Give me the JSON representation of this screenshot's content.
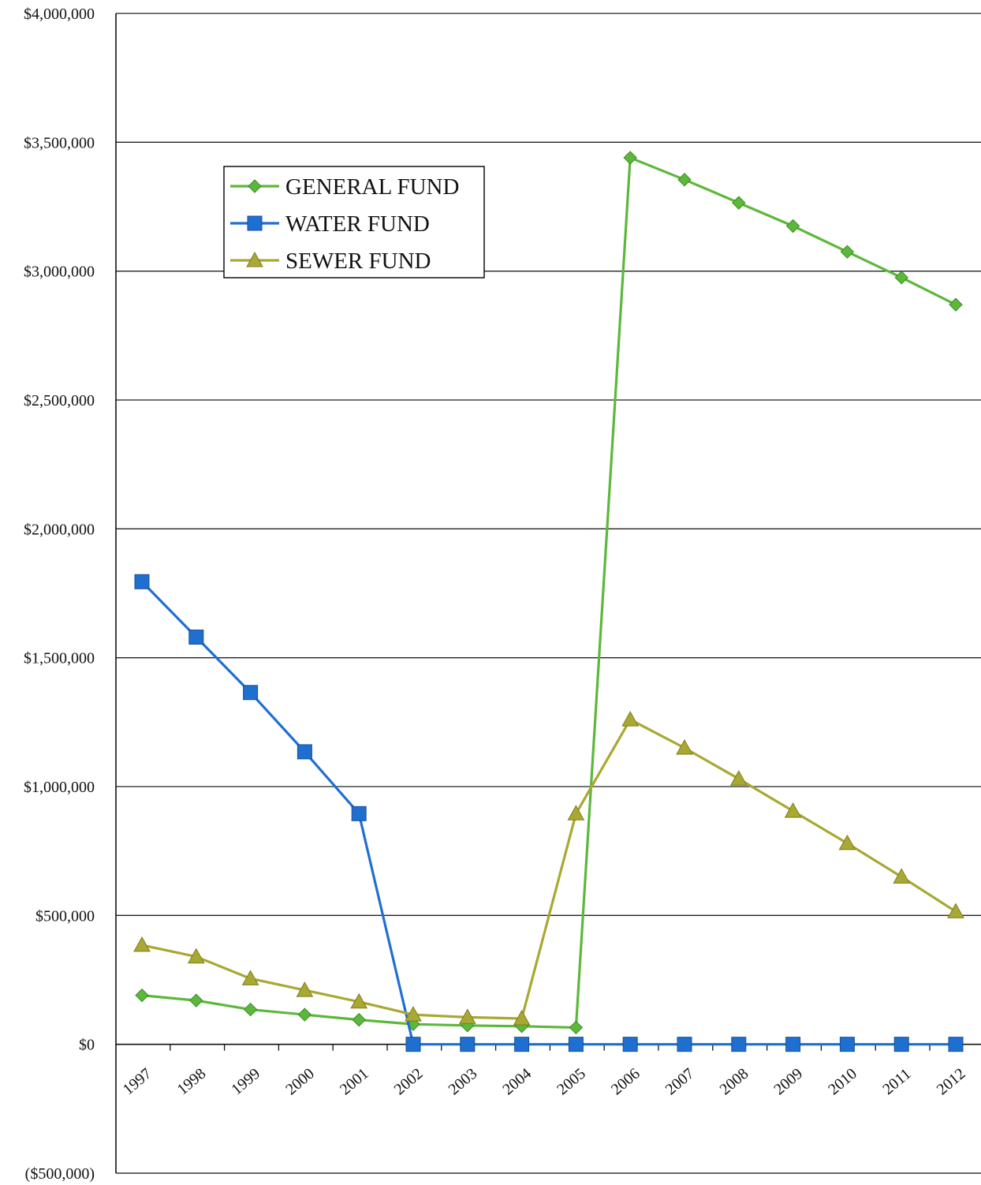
{
  "chart_data": {
    "type": "line",
    "categories": [
      "1997",
      "1998",
      "1999",
      "2000",
      "2001",
      "2002",
      "2003",
      "2004",
      "2005",
      "2006",
      "2007",
      "2008",
      "2009",
      "2010",
      "2011",
      "2012"
    ],
    "y_tick_labels": [
      "($500,000)",
      "$0",
      "$500,000",
      "$1,000,000",
      "$1,500,000",
      "$2,000,000",
      "$2,500,000",
      "$3,000,000",
      "$3,500,000",
      "$4,000,000"
    ],
    "y_tick_values": [
      -500000,
      0,
      500000,
      1000000,
      1500000,
      2000000,
      2500000,
      3000000,
      3500000,
      4000000
    ],
    "ylim": [
      -500000,
      4000000
    ],
    "grid": true,
    "legend_position": "upper-left",
    "series": [
      {
        "name": "GENERAL FUND",
        "color": "#5cb83a",
        "marker": "diamond",
        "values": [
          190000,
          170000,
          135000,
          115000,
          95000,
          78000,
          73000,
          70000,
          65000,
          3440000,
          3355000,
          3265000,
          3175000,
          3075000,
          2975000,
          2870000
        ]
      },
      {
        "name": "WATER FUND",
        "color": "#1f6fd1",
        "marker": "square",
        "values": [
          1795000,
          1580000,
          1365000,
          1135000,
          895000,
          0,
          0,
          0,
          0,
          0,
          0,
          0,
          0,
          0,
          0,
          0
        ]
      },
      {
        "name": "SEWER FUND",
        "color": "#a8a832",
        "marker": "triangle",
        "values": [
          385000,
          340000,
          255000,
          210000,
          165000,
          115000,
          105000,
          100000,
          895000,
          1260000,
          1150000,
          1030000,
          905000,
          780000,
          650000,
          515000
        ]
      }
    ]
  }
}
